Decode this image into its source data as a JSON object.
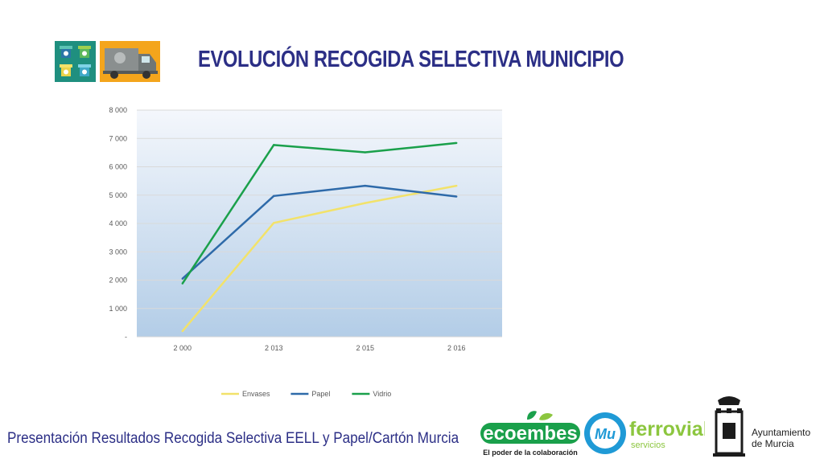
{
  "header": {
    "title": "EVOLUCIÓN RECOGIDA SELECTIVA MUNICIPIO",
    "icons": [
      "recycling-bins-icon",
      "garbage-truck-icon"
    ]
  },
  "chart_data": {
    "type": "line",
    "categories": [
      "2 000",
      "2 013",
      "2 015",
      "2 016"
    ],
    "series": [
      {
        "name": "Envases",
        "color": "#f2e26a",
        "values": [
          200,
          4020,
          4720,
          5330
        ]
      },
      {
        "name": "Papel",
        "color": "#2e6aa9",
        "values": [
          2050,
          4970,
          5330,
          4950
        ]
      },
      {
        "name": "Vidrio",
        "color": "#1aa04b",
        "values": [
          1880,
          6770,
          6510,
          6840
        ]
      }
    ],
    "yticks": [
      "-",
      "1 000",
      "2 000",
      "3 000",
      "4 000",
      "5 000",
      "6 000",
      "7 000",
      "8 000"
    ],
    "ylim": [
      0,
      8000
    ],
    "grid": true,
    "legend": "bottom"
  },
  "footer": {
    "text": "Presentación Resultados Recogida Selectiva EELL y Papel/Cartón Murcia"
  },
  "logos": {
    "ecoembes_name": "ecoembes",
    "ecoembes_tagline": "El poder de la colaboración",
    "ferrovial_badge": "Mu",
    "ferrovial_name": "ferrovial",
    "ferrovial_sub": "servicios",
    "ayto_line1": "Ayuntamiento",
    "ayto_line2": "de Murcia"
  },
  "colors": {
    "title": "#2c2f86",
    "ecoembes_green": "#1aa04b",
    "ferrovial_blue": "#1f9ad6",
    "ferrovial_green": "#8cc63f"
  }
}
